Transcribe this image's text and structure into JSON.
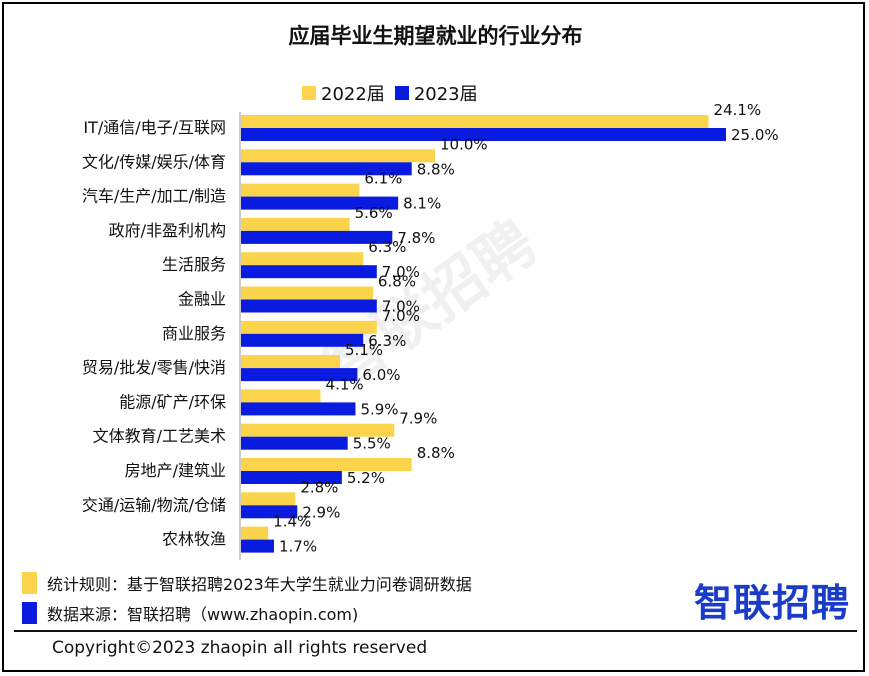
{
  "title": "应届毕业生期望就业的行业分布",
  "watermark": "智联招聘",
  "legend": [
    {
      "label": "2022届",
      "color": "#FBD44B"
    },
    {
      "label": "2023届",
      "color": "#0A1BE0"
    }
  ],
  "chart_data": {
    "type": "bar",
    "orientation": "horizontal",
    "title": "应届毕业生期望就业的行业分布",
    "categories": [
      "IT/通信/电子/互联网",
      "文化/传媒/娱乐/体育",
      "汽车/生产/加工/制造",
      "政府/非盈利机构",
      "生活服务",
      "金融业",
      "商业服务",
      "贸易/批发/零售/快消",
      "能源/矿产/环保",
      "文体教育/工艺美术",
      "房地产/建筑业",
      "交通/运输/物流/仓储",
      "农林牧渔"
    ],
    "series": [
      {
        "name": "2022届",
        "color": "#FBD44B",
        "values": [
          24.1,
          10.0,
          6.1,
          5.6,
          6.3,
          6.8,
          7.0,
          5.1,
          4.1,
          7.9,
          8.8,
          2.8,
          1.4
        ]
      },
      {
        "name": "2023届",
        "color": "#0A1BE0",
        "values": [
          25.0,
          8.8,
          8.1,
          7.8,
          7.0,
          7.0,
          6.3,
          6.0,
          5.9,
          5.5,
          5.2,
          2.9,
          1.7
        ]
      }
    ],
    "value_labels": {
      "2022届": [
        "24.1%",
        "10.0%",
        "6.1%",
        "5.6%",
        "6.3%",
        "6.8%",
        "7.0%",
        "5.1%",
        "4.1%",
        "7.9%",
        "8.8%",
        "2.8%",
        "1.4%"
      ],
      "2023届": [
        "25.0%",
        "8.8%",
        "8.1%",
        "7.8%",
        "7.0%",
        "7.0%",
        "6.3%",
        "6.0%",
        "5.9%",
        "5.5%",
        "5.2%",
        "2.9%",
        "1.7%"
      ]
    },
    "xlim": [
      0,
      25
    ],
    "grid": false,
    "legend_position": "top-center"
  },
  "notes": [
    {
      "text": "统计规则：基于智联招聘2023年大学生就业力问卷调研数据",
      "color": "#FBD44B"
    },
    {
      "text": "数据来源：智联招聘（www.zhaopin.com)",
      "color": "#0A1BE0"
    }
  ],
  "brand": "智联招聘",
  "copyright": "Copyright©2023 zhaopin all rights reserved"
}
